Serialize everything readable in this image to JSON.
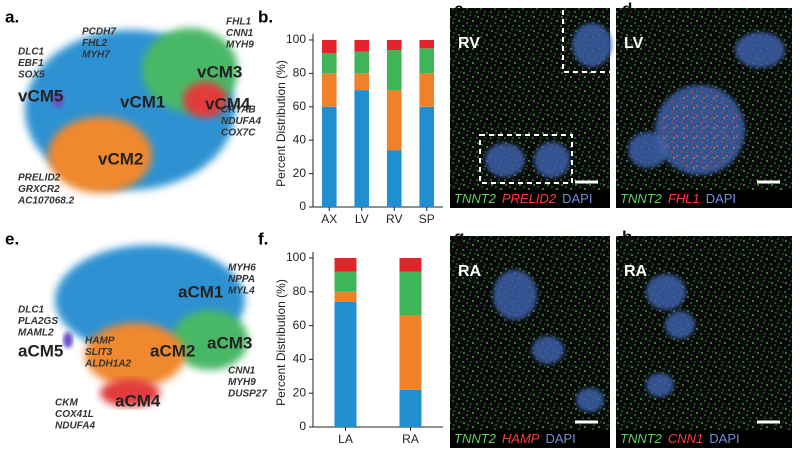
{
  "chart_data": [
    {
      "type": "bar",
      "stacked": true,
      "panel": "b.",
      "ylabel": "Percent Distribution (%)",
      "categories": [
        "AX",
        "LV",
        "RV",
        "SP"
      ],
      "series": [
        {
          "color": "#1f8fd0",
          "values": [
            60,
            70,
            34,
            60
          ]
        },
        {
          "color": "#f0812a",
          "values": [
            20,
            10,
            36,
            20
          ]
        },
        {
          "color": "#3fb55a",
          "values": [
            12,
            13,
            24,
            15
          ]
        },
        {
          "color": "#e3242b",
          "values": [
            8,
            7,
            6,
            5
          ]
        }
      ],
      "ylim": [
        0,
        100
      ],
      "yticks": [
        0,
        20,
        40,
        60,
        80,
        100
      ]
    },
    {
      "type": "bar",
      "stacked": true,
      "panel": "f.",
      "ylabel": "Percent Distribution (%)",
      "categories": [
        "LA",
        "RA"
      ],
      "series": [
        {
          "color": "#1f8fd0",
          "values": [
            74,
            22
          ]
        },
        {
          "color": "#f0812a",
          "values": [
            6,
            44
          ]
        },
        {
          "color": "#3fb55a",
          "values": [
            12,
            26
          ]
        },
        {
          "color": "#e3242b",
          "values": [
            8,
            8
          ]
        }
      ],
      "ylim": [
        0,
        100
      ],
      "yticks": [
        0,
        20,
        40,
        60,
        80,
        100
      ]
    }
  ],
  "umap": [
    {
      "label": "a.",
      "clusters": [
        "vCM1",
        "vCM2",
        "vCM3",
        "vCM4",
        "vCM5"
      ],
      "markers": [
        [
          "PCDH7",
          "FHL2",
          "MYH7"
        ],
        [
          "FHL1",
          "CNN1",
          "MYH9"
        ],
        [
          "CRYAB",
          "NDUFA4",
          "COX7C"
        ],
        [
          "DLC1",
          "EBF1",
          "SOX5"
        ],
        [
          "PRELID2",
          "GRXCR2",
          "AC107068.2"
        ]
      ]
    },
    {
      "label": "e.",
      "clusters": [
        "aCM1",
        "aCM2",
        "aCM3",
        "aCM4",
        "aCM5"
      ],
      "markers": [
        [
          "MYH6",
          "NPPA",
          "MYL4"
        ],
        [
          "DLC1",
          "PLA2GS",
          "MAML2"
        ],
        [
          "HAMP",
          "SLIT3",
          "ALDH1A2"
        ],
        [
          "CNN1",
          "MYH9",
          "DUSP27"
        ],
        [
          "CKM",
          "COX41L",
          "NDUFA4"
        ]
      ]
    }
  ],
  "images": [
    {
      "label": "c.",
      "region": "RV",
      "stains": [
        "TNNT2",
        "PRELID2",
        "DAPI"
      ]
    },
    {
      "label": "d.",
      "region": "LV",
      "stains": [
        "TNNT2",
        "FHL1",
        "DAPI"
      ]
    },
    {
      "label": "g.",
      "region": "RA",
      "stains": [
        "TNNT2",
        "HAMP",
        "DAPI"
      ]
    },
    {
      "label": "h.",
      "region": "RA",
      "stains": [
        "TNNT2",
        "CNN1",
        "DAPI"
      ]
    }
  ]
}
